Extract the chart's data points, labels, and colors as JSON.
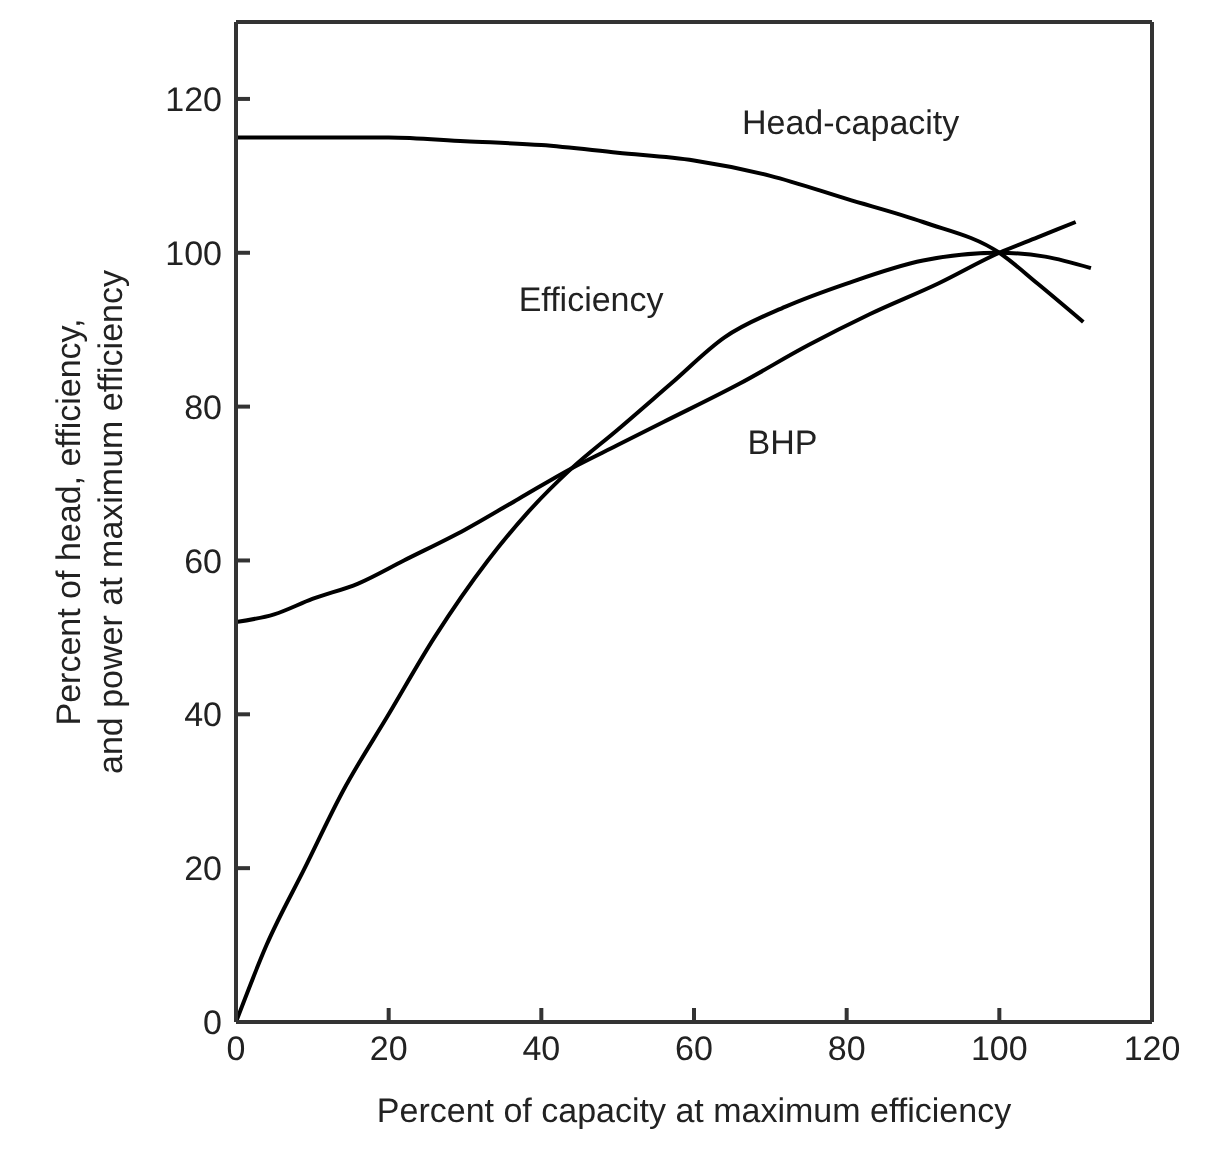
{
  "chart_data": {
    "type": "line",
    "xlabel": "Percent of capacity at maximum efficiency",
    "ylabel": "Percent of head, efficiency, and power at maximum efficiency",
    "xlim": [
      0,
      120
    ],
    "xticks": [
      0,
      20,
      40,
      60,
      80,
      100,
      120
    ],
    "ylim": [
      0,
      130
    ],
    "yticks": [
      0,
      20,
      40,
      60,
      80,
      100,
      120
    ],
    "marker": "none",
    "line_style": "solid",
    "series": [
      {
        "name": "Head-capacity",
        "color": "#000000",
        "x": [
          0,
          10,
          20,
          30,
          40,
          50,
          60,
          70,
          80,
          90,
          100,
          105,
          111
        ],
        "values": [
          115,
          115,
          115,
          114.5,
          114,
          113,
          112,
          110,
          107,
          104,
          100,
          96,
          91
        ]
      },
      {
        "name": "Efficiency",
        "color": "#000000",
        "x": [
          0,
          4,
          9,
          14,
          20,
          26,
          33,
          38,
          44,
          50,
          57,
          64,
          72,
          80,
          90,
          100,
          106,
          112
        ],
        "values": [
          0,
          10,
          20,
          30,
          40,
          50,
          60,
          66,
          72,
          77,
          83,
          89,
          93,
          96,
          99,
          100,
          99.5,
          98
        ]
      },
      {
        "name": "BHP",
        "color": "#000000",
        "x": [
          0,
          5,
          10,
          16,
          22,
          30,
          37,
          44,
          50,
          56,
          66,
          75,
          83,
          92,
          100,
          105,
          110
        ],
        "values": [
          52,
          53,
          55,
          57,
          60,
          64,
          68,
          72,
          75,
          78,
          83,
          88,
          92,
          96,
          100,
          102,
          104
        ]
      }
    ]
  }
}
